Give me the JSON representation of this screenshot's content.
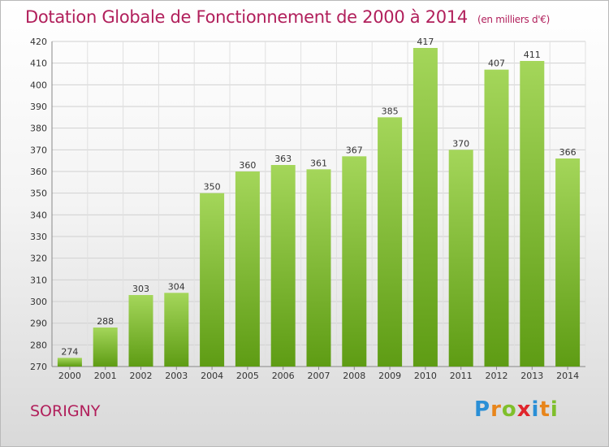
{
  "chart_data": {
    "type": "bar",
    "title": "Dotation Globale de Fonctionnement de 2000 à 2014",
    "unit_note": "(en milliers d'€)",
    "categories": [
      "2000",
      "2001",
      "2002",
      "2003",
      "2004",
      "2005",
      "2006",
      "2007",
      "2008",
      "2009",
      "2010",
      "2011",
      "2012",
      "2013",
      "2014"
    ],
    "values": [
      274,
      288,
      303,
      304,
      350,
      360,
      363,
      361,
      367,
      385,
      417,
      370,
      407,
      411,
      366
    ],
    "ylim": [
      270,
      420
    ],
    "yticks": [
      270,
      280,
      290,
      300,
      310,
      320,
      330,
      340,
      350,
      360,
      370,
      380,
      390,
      400,
      410,
      420
    ],
    "grid": true,
    "bar_color": "#7dbf2a",
    "legend": "none"
  },
  "place_name": "SORIGNY",
  "logo_text": "Proxiti"
}
